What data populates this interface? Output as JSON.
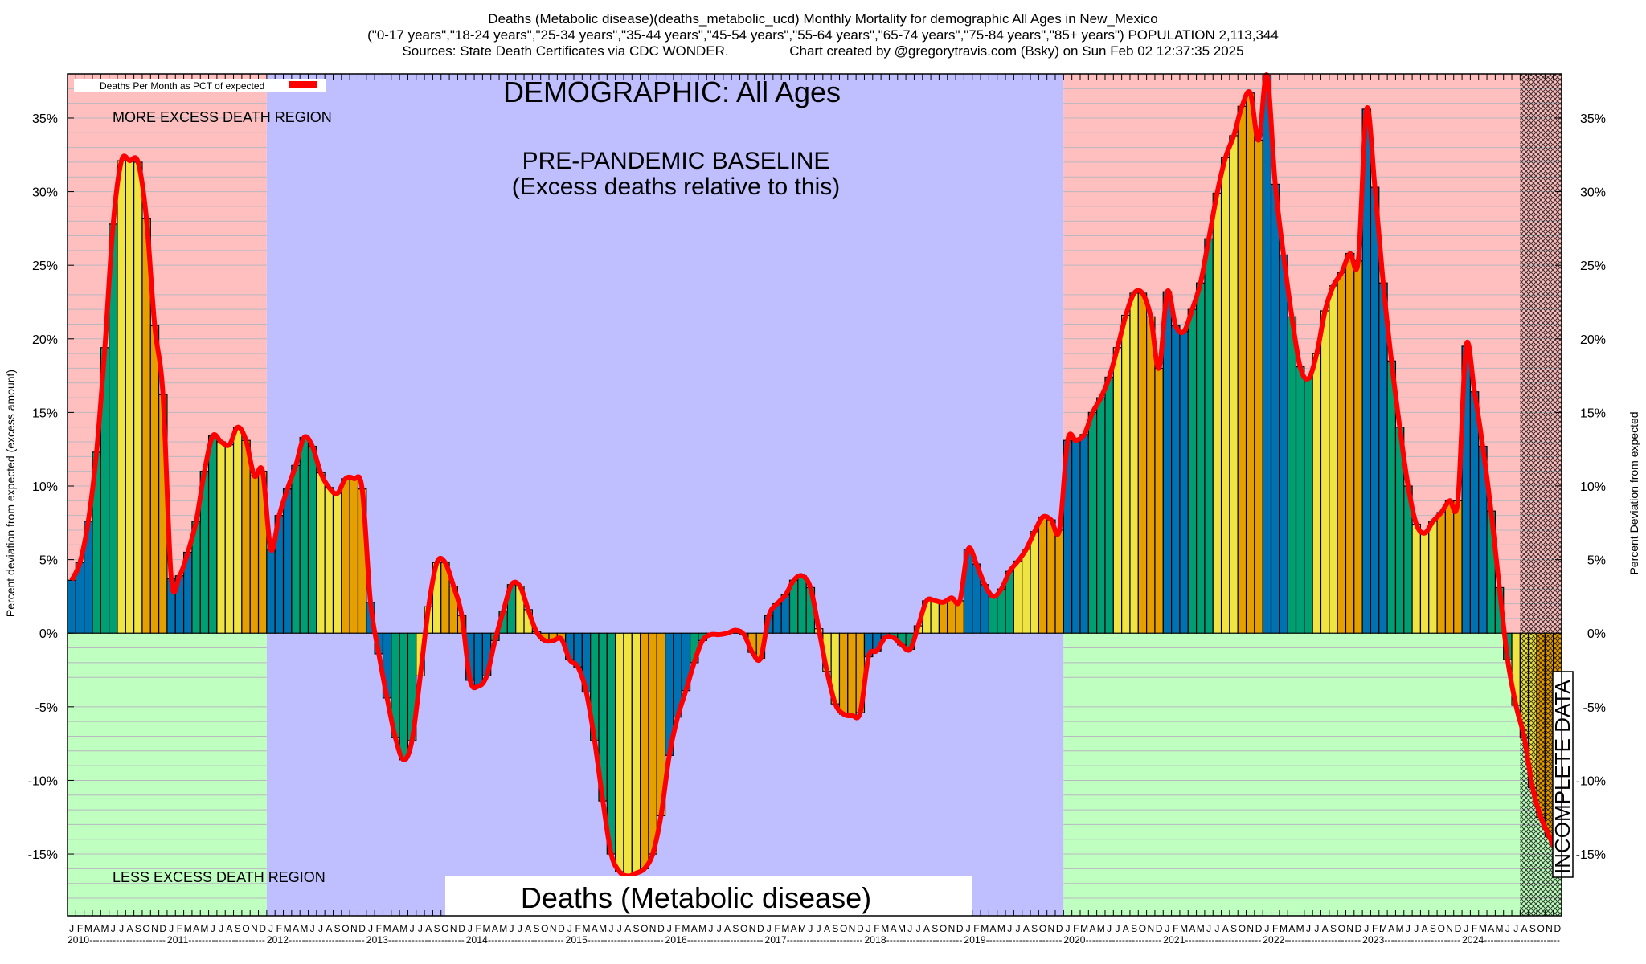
{
  "chart_data": {
    "type": "bar",
    "title": "Deaths (Metabolic disease)(deaths_metabolic_ucd) Monthly Mortality for demographic All Ages in New_Mexico",
    "subtitle": "(\"0-17 years\",\"18-24 years\",\"25-34 years\",\"35-44 years\",\"45-54 years\",\"55-64 years\",\"65-74 years\",\"75-84 years\",\"85+ years\") POPULATION 2,113,344",
    "sources": "Sources: State Death Certificates via CDC WONDER.",
    "credit": "Chart created by @gregorytravis.com (Bsky) on Sun Feb 02 12:37:35 2025",
    "ylabel_left": "Percent deviation from expected (excess amount)",
    "ylabel_right": "Percent Deviation from expected",
    "ylim": [
      -19.2,
      38
    ],
    "yticks": [
      35,
      30,
      25,
      20,
      15,
      10,
      5,
      0,
      -5,
      -10,
      -15
    ],
    "ytick_labels": [
      "35%",
      "30%",
      "25%",
      "20%",
      "15%",
      "10%",
      "5%",
      "0%",
      "-5%",
      "-10%",
      "-15%"
    ],
    "grid": true,
    "legend": {
      "label": "Deaths Per Month as PCT of expected",
      "color": "#ff0000",
      "placement": "top-left"
    },
    "month_letters": [
      "J",
      "F",
      "M",
      "A",
      "M",
      "J",
      "J",
      "A",
      "S",
      "O",
      "N",
      "D"
    ],
    "years": [
      "2010",
      "2011",
      "2012",
      "2013",
      "2014",
      "2015",
      "2016",
      "2017",
      "2018",
      "2019",
      "2020",
      "2021",
      "2022",
      "2023",
      "2024"
    ],
    "season_colors": [
      "#0072b2",
      "#009e73",
      "#f0e442",
      "#e69f00"
    ],
    "region_colors": {
      "excess": "#ffbfbf",
      "less": "#bfffbf",
      "baseline": "#bfbfff"
    },
    "baseline_years": [
      "2012",
      "2019"
    ],
    "incomplete_from_month_index": 175,
    "values": [
      3.6,
      4.8,
      7.6,
      12.3,
      19.4,
      27.8,
      32.1,
      32.1,
      32.0,
      28.2,
      20.9,
      16.2,
      3.7,
      3.9,
      5.5,
      7.6,
      11.0,
      13.4,
      13.0,
      12.8,
      14.0,
      13.1,
      10.7,
      11.0,
      5.7,
      8.0,
      9.8,
      11.4,
      13.3,
      12.7,
      10.9,
      9.9,
      9.5,
      10.5,
      10.5,
      9.8,
      2.1,
      -1.4,
      -4.4,
      -7.1,
      -8.6,
      -7.3,
      -2.9,
      1.8,
      4.8,
      4.8,
      3.2,
      1.2,
      -3.2,
      -3.6,
      -2.9,
      -0.5,
      1.5,
      3.3,
      3.2,
      1.6,
      0.1,
      -0.5,
      -0.5,
      -0.4,
      -1.8,
      -2.3,
      -4.0,
      -7.3,
      -11.4,
      -15.0,
      -16.2,
      -16.5,
      -16.3,
      -16.0,
      -15.0,
      -12.4,
      -8.3,
      -5.7,
      -3.9,
      -2.0,
      -0.5,
      -0.1,
      -0.1,
      0.0,
      0.2,
      -0.1,
      -1.3,
      -1.7,
      1.2,
      2.0,
      2.6,
      3.6,
      3.9,
      3.1,
      0.3,
      -2.6,
      -4.8,
      -5.5,
      -5.6,
      -5.4,
      -1.6,
      -1.2,
      -0.3,
      -0.3,
      -0.8,
      -1.1,
      0.5,
      2.2,
      2.2,
      2.1,
      2.4,
      2.2,
      5.7,
      4.7,
      3.3,
      2.5,
      3.0,
      4.2,
      4.9,
      5.7,
      6.9,
      7.9,
      7.7,
      7.0,
      13.1,
      13.1,
      13.5,
      15.0,
      16.0,
      17.4,
      19.4,
      21.6,
      23.1,
      23.1,
      21.5,
      18.0,
      23.2,
      20.9,
      20.5,
      22.0,
      23.8,
      26.8,
      29.9,
      32.3,
      33.8,
      35.8,
      36.7,
      33.5,
      37.9,
      30.5,
      25.7,
      21.5,
      18.1,
      17.3,
      19.0,
      21.9,
      23.6,
      24.5,
      25.8,
      25.3,
      35.6,
      30.3,
      23.8,
      18.5,
      14.0,
      10.0,
      7.4,
      6.8,
      7.6,
      8.2,
      9.0,
      9.0,
      19.5,
      16.4,
      12.7,
      8.3,
      3.1,
      -1.8,
      -4.9,
      -7.1,
      -10.5,
      -12.5,
      -13.8,
      -15.0
    ]
  },
  "annotations": {
    "demographic": "DEMOGRAPHIC: All Ages",
    "baseline_title": "PRE-PANDEMIC BASELINE",
    "baseline_note": "(Excess deaths relative to this)",
    "more_region": "MORE EXCESS DEATH REGION",
    "less_region": "LESS EXCESS DEATH REGION",
    "incomplete": "INCOMPLETE DATA",
    "cause_label": "Deaths (Metabolic disease)"
  }
}
